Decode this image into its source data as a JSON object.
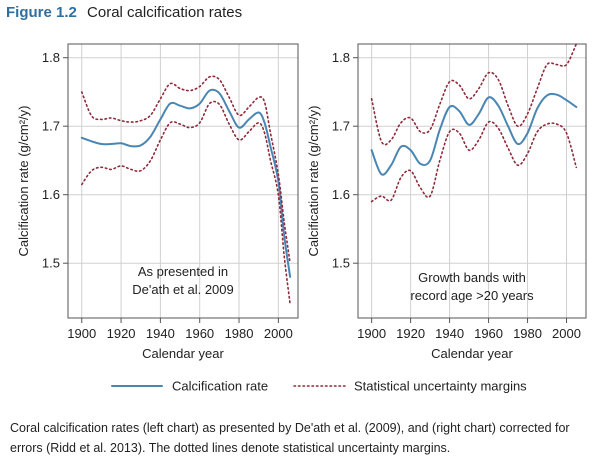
{
  "figure": {
    "number": "Figure 1.2",
    "title": "Coral calcification rates",
    "caption": "Coral calcification rates (left chart) as presented by De'ath et al. (2009), and (right chart) corrected for errors (Ridd et al. 2013). The dotted lines denote statistical uncertainty margins."
  },
  "legend": [
    {
      "label": "Calcification rate",
      "style": "solid"
    },
    {
      "label": "Statistical uncertainty margins",
      "style": "dotted"
    }
  ],
  "colors": {
    "rate": "#4a86b4",
    "margin": "#8e2a3a",
    "grid": "#d0d0d0",
    "frame": "#555555"
  },
  "chart_data": [
    {
      "type": "line",
      "annotation": [
        "As presented in",
        "De'ath et al. 2009"
      ],
      "xlabel": "Calendar year",
      "ylabel": "Calcification rate (g/cm²/y)",
      "xlim": [
        1893,
        2010
      ],
      "ylim": [
        1.42,
        1.82
      ],
      "xticks": [
        1900,
        1920,
        1940,
        1960,
        1980,
        2000
      ],
      "yticks": [
        1.5,
        1.6,
        1.7,
        1.8
      ],
      "grid": true,
      "series": [
        {
          "name": "Calcification rate",
          "style": "solid",
          "x": [
            1900,
            1905,
            1910,
            1915,
            1920,
            1925,
            1930,
            1935,
            1940,
            1945,
            1950,
            1955,
            1960,
            1965,
            1970,
            1975,
            1980,
            1985,
            1990,
            1993,
            1996,
            2000,
            2003,
            2006
          ],
          "y": [
            1.683,
            1.678,
            1.674,
            1.674,
            1.675,
            1.671,
            1.672,
            1.685,
            1.71,
            1.733,
            1.73,
            1.726,
            1.733,
            1.752,
            1.748,
            1.722,
            1.698,
            1.71,
            1.72,
            1.705,
            1.67,
            1.62,
            1.54,
            1.48
          ]
        },
        {
          "name": "Upper margin",
          "style": "dotted",
          "x": [
            1900,
            1905,
            1910,
            1915,
            1920,
            1925,
            1930,
            1935,
            1940,
            1945,
            1950,
            1955,
            1960,
            1965,
            1970,
            1975,
            1980,
            1985,
            1990,
            1993,
            1996,
            2000,
            2003,
            2006
          ],
          "y": [
            1.75,
            1.715,
            1.71,
            1.712,
            1.708,
            1.706,
            1.708,
            1.716,
            1.74,
            1.762,
            1.755,
            1.752,
            1.758,
            1.772,
            1.768,
            1.742,
            1.716,
            1.728,
            1.742,
            1.735,
            1.69,
            1.63,
            1.56,
            1.5
          ]
        },
        {
          "name": "Lower margin",
          "style": "dotted",
          "x": [
            1900,
            1905,
            1910,
            1915,
            1920,
            1925,
            1930,
            1935,
            1940,
            1945,
            1950,
            1955,
            1960,
            1965,
            1970,
            1975,
            1980,
            1985,
            1990,
            1993,
            1996,
            2000,
            2003,
            2006
          ],
          "y": [
            1.615,
            1.635,
            1.64,
            1.637,
            1.642,
            1.637,
            1.635,
            1.65,
            1.68,
            1.705,
            1.703,
            1.698,
            1.705,
            1.733,
            1.732,
            1.703,
            1.68,
            1.692,
            1.705,
            1.69,
            1.65,
            1.6,
            1.51,
            1.44
          ]
        }
      ]
    },
    {
      "type": "line",
      "annotation": [
        "Growth bands with",
        "record age >20 years"
      ],
      "xlabel": "Calendar year",
      "ylabel": "Calcification rate (g/cm²/y)",
      "xlim": [
        1893,
        2010
      ],
      "ylim": [
        1.42,
        1.82
      ],
      "xticks": [
        1900,
        1920,
        1940,
        1960,
        1980,
        2000
      ],
      "yticks": [
        1.5,
        1.6,
        1.7,
        1.8
      ],
      "grid": true,
      "series": [
        {
          "name": "Calcification rate",
          "style": "solid",
          "x": [
            1900,
            1905,
            1910,
            1915,
            1920,
            1925,
            1930,
            1935,
            1940,
            1945,
            1950,
            1955,
            1960,
            1965,
            1970,
            1975,
            1980,
            1985,
            1990,
            1995,
            2000,
            2005
          ],
          "y": [
            1.665,
            1.63,
            1.643,
            1.67,
            1.665,
            1.645,
            1.65,
            1.695,
            1.728,
            1.722,
            1.702,
            1.718,
            1.742,
            1.73,
            1.7,
            1.674,
            1.69,
            1.726,
            1.745,
            1.746,
            1.738,
            1.728
          ]
        },
        {
          "name": "Upper margin",
          "style": "dotted",
          "x": [
            1900,
            1905,
            1910,
            1915,
            1920,
            1925,
            1930,
            1935,
            1940,
            1945,
            1950,
            1955,
            1960,
            1965,
            1970,
            1975,
            1980,
            1985,
            1990,
            1995,
            2000,
            2005
          ],
          "y": [
            1.74,
            1.678,
            1.68,
            1.705,
            1.712,
            1.692,
            1.695,
            1.732,
            1.765,
            1.76,
            1.74,
            1.755,
            1.778,
            1.768,
            1.73,
            1.7,
            1.718,
            1.755,
            1.79,
            1.79,
            1.79,
            1.82
          ]
        },
        {
          "name": "Lower margin",
          "style": "dotted",
          "x": [
            1900,
            1905,
            1910,
            1915,
            1920,
            1925,
            1930,
            1935,
            1940,
            1945,
            1950,
            1955,
            1960,
            1965,
            1970,
            1975,
            1980,
            1985,
            1990,
            1995,
            2000,
            2005
          ],
          "y": [
            1.59,
            1.598,
            1.592,
            1.625,
            1.635,
            1.61,
            1.598,
            1.65,
            1.692,
            1.69,
            1.665,
            1.68,
            1.706,
            1.697,
            1.668,
            1.643,
            1.66,
            1.692,
            1.703,
            1.703,
            1.69,
            1.64
          ]
        }
      ]
    }
  ]
}
